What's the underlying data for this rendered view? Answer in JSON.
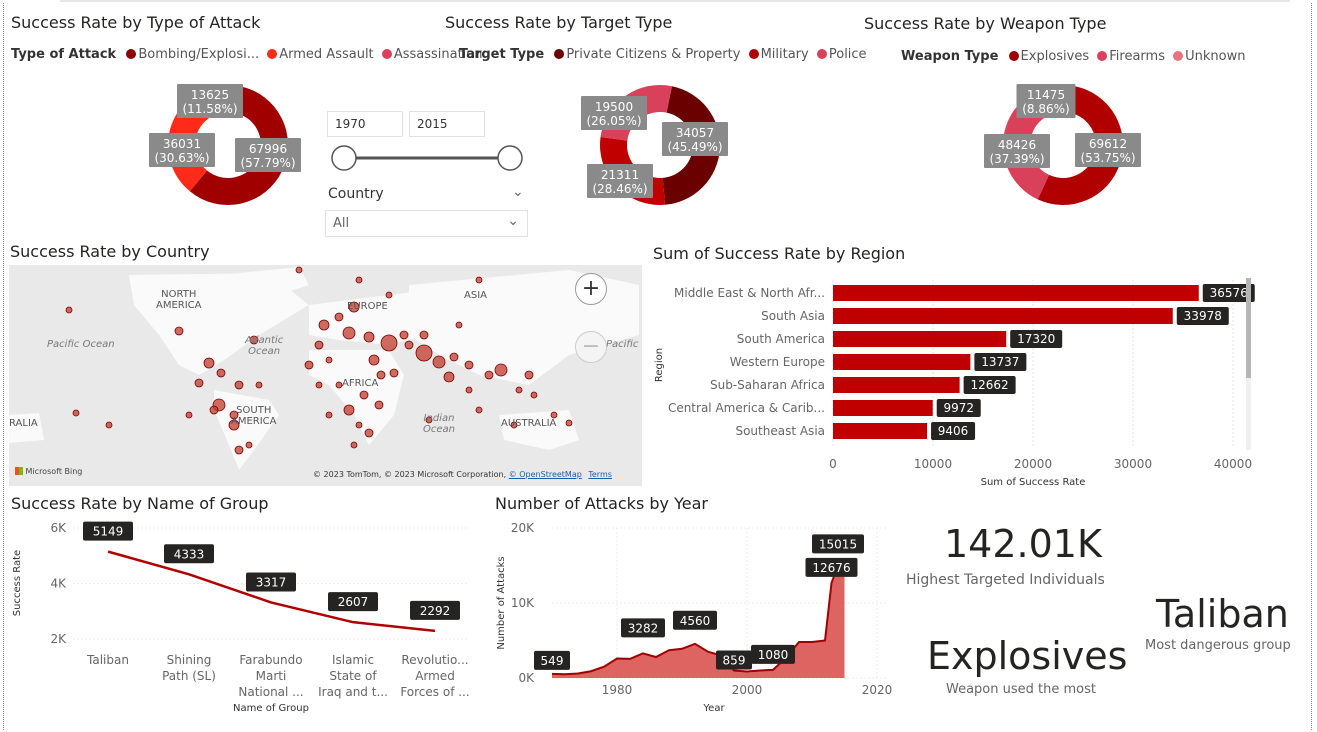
{
  "colors": {
    "dark": "#8b0000",
    "mid": "#c00000",
    "red": "#ff2a1a",
    "rose": "#d9415a",
    "pink": "#e8737f",
    "bar": "#c00000",
    "label_bg": "#252423"
  },
  "attack_type": {
    "title": "Success Rate by Type of Attack",
    "legend_title": "Type of Attack",
    "legend": [
      "Bombing/Explosi...",
      "Armed Assault",
      "Assassination"
    ],
    "labels": [
      {
        "value": "67996",
        "pct": "(57.79%)"
      },
      {
        "value": "36031",
        "pct": "(30.63%)"
      },
      {
        "value": "13625",
        "pct": "(11.58%)"
      }
    ]
  },
  "target_type": {
    "title": "Success Rate by Target Type",
    "legend_title": "Target Type",
    "legend": [
      "Private Citizens & Property",
      "Military",
      "Police"
    ],
    "labels": [
      {
        "value": "34057",
        "pct": "(45.49%)"
      },
      {
        "value": "21311",
        "pct": "(28.46%)"
      },
      {
        "value": "19500",
        "pct": "(26.05%)"
      }
    ]
  },
  "weapon_type": {
    "title": "Success Rate by Weapon Type",
    "legend_title": "Weapon Type",
    "legend": [
      "Explosives",
      "Firearms",
      "Unknown"
    ],
    "labels": [
      {
        "value": "69612",
        "pct": "(53.75%)"
      },
      {
        "value": "48426",
        "pct": "(37.39%)"
      },
      {
        "value": "11475",
        "pct": "(8.86%)"
      }
    ]
  },
  "slicers": {
    "year_start": "1970",
    "year_end": "2015",
    "country_label": "Country",
    "country_value": "All"
  },
  "map": {
    "title": "Success Rate by Country",
    "labels": {
      "north_america": "NORTH\nAMERICA",
      "europe": "EUROPE",
      "asia": "ASIA",
      "africa": "AFRICA",
      "south_america": "SOUTH\nAMERICA",
      "australia": "AUSTRALIA",
      "australia_left": "RALIA"
    },
    "oceans": {
      "pacific": "Pacific Ocean",
      "atlantic": "Atlantic\nOcean",
      "indian": "Indian\nOcean",
      "pacific_right": "Pacific Ocea"
    },
    "bing": "Microsoft Bing",
    "copyright": "© 2023 TomTom, © 2023 Microsoft Corporation,",
    "osm": "© OpenStreetMap",
    "terms": "Terms",
    "zoom_in": "+",
    "zoom_out": "−"
  },
  "region_chart": {
    "title": "Sum of Success Rate by Region",
    "xlabel": "Sum of Success Rate",
    "ylabel": "Region",
    "xticks": [
      "0",
      "10000",
      "20000",
      "30000",
      "40000"
    ]
  },
  "group_chart": {
    "title": "Success Rate by Name of Group",
    "xlabel": "Name of Group",
    "ylabel": "Success Rate",
    "yticks": [
      "6K",
      "4K",
      "2K"
    ]
  },
  "year_chart": {
    "title": "Number of Attacks by Year",
    "xlabel": "Year",
    "ylabel": "Number of Attacks",
    "yticks": [
      "20K",
      "10K",
      "0K"
    ],
    "xticks": [
      "1980",
      "2000",
      "2020"
    ]
  },
  "cards": {
    "kpi_value": "142.01K",
    "kpi_label": "Highest Targeted Individuals",
    "weapon_value": "Explosives",
    "weapon_label": "Weapon used the most",
    "group_value": "Taliban",
    "group_label": "Most dangerous group"
  },
  "chart_data": [
    {
      "type": "pie",
      "title": "Success Rate by Type of Attack",
      "categories": [
        "Bombing/Explosi...",
        "Armed Assault",
        "Assassination"
      ],
      "values": [
        67996,
        36031,
        13625
      ]
    },
    {
      "type": "pie",
      "title": "Success Rate by Target Type",
      "categories": [
        "Private Citizens & Property",
        "Military",
        "Police"
      ],
      "values": [
        34057,
        21311,
        19500
      ]
    },
    {
      "type": "pie",
      "title": "Success Rate by Weapon Type",
      "categories": [
        "Explosives",
        "Firearms",
        "Unknown"
      ],
      "values": [
        69612,
        48426,
        11475
      ]
    },
    {
      "type": "bar",
      "title": "Sum of Success Rate by Region",
      "xlabel": "Sum of Success Rate",
      "ylabel": "Region",
      "categories": [
        "Middle East & North Afr...",
        "South Asia",
        "South America",
        "Western Europe",
        "Sub-Saharan Africa",
        "Central America & Carib...",
        "Southeast Asia"
      ],
      "values": [
        36576,
        33978,
        17320,
        13737,
        12662,
        9972,
        9406
      ],
      "xlim": [
        0,
        40000
      ]
    },
    {
      "type": "line",
      "title": "Success Rate by Name of Group",
      "xlabel": "Name of Group",
      "ylabel": "Success Rate",
      "categories": [
        "Taliban",
        "Shining\nPath (SL)",
        "Farabundo\nMarti\nNational ...",
        "Islamic\nState of\nIraq and t...",
        "Revolutio...\nArmed\nForces of ..."
      ],
      "values": [
        5149,
        4333,
        3317,
        2607,
        2292
      ],
      "ylim": [
        2000,
        6000
      ]
    },
    {
      "type": "area",
      "title": "Number of Attacks by Year",
      "xlabel": "Year",
      "ylabel": "Number of Attacks",
      "x": [
        1970,
        1972,
        1974,
        1976,
        1978,
        1980,
        1982,
        1984,
        1986,
        1988,
        1990,
        1992,
        1994,
        1996,
        1998,
        2000,
        2002,
        2004,
        2006,
        2008,
        2010,
        2012,
        2013,
        2014,
        2015
      ],
      "values": [
        549,
        500,
        600,
        900,
        1500,
        2600,
        2550,
        3282,
        2800,
        3700,
        3900,
        4560,
        3500,
        3000,
        1000,
        859,
        1000,
        1080,
        2700,
        4800,
        4800,
        5000,
        12676,
        15015,
        14800
      ],
      "labeled": [
        549,
        3282,
        4560,
        859,
        1080,
        12676,
        15015
      ],
      "ylim": [
        0,
        20000
      ],
      "xlim": [
        1970,
        2020
      ]
    }
  ]
}
